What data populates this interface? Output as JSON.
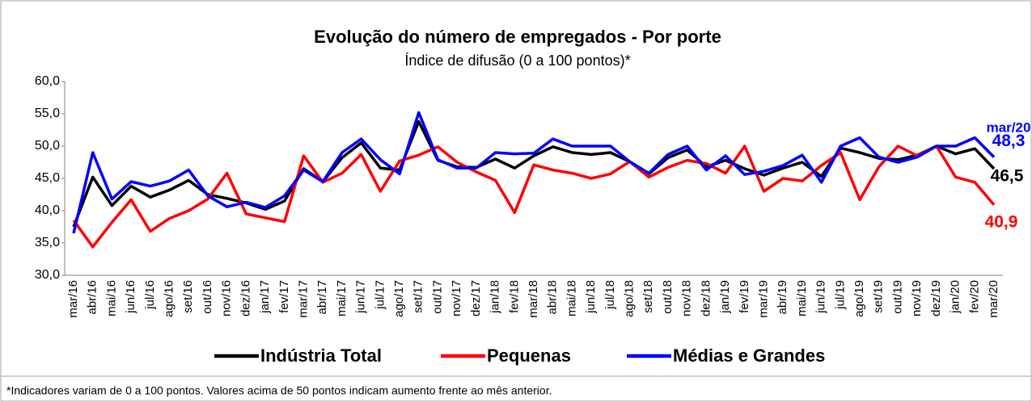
{
  "chart_data": {
    "type": "line",
    "title": "Evolução do número de empregados - Por porte",
    "subtitle": "Índice de difusão (0 a 100 pontos)*",
    "footnote": "*Indicadores variam de 0 a 100 pontos. Valores acima de 50 pontos indicam aumento frente ao mês anterior.",
    "annotations": [
      "mar/20"
    ],
    "categories": [
      "mar/16",
      "abr/16",
      "mai/16",
      "jun/16",
      "jul/16",
      "ago/16",
      "set/16",
      "out/16",
      "nov/16",
      "dez/16",
      "jan/17",
      "fev/17",
      "mar/17",
      "abr/17",
      "mai/17",
      "jun/17",
      "jul/17",
      "ago/17",
      "set/17",
      "out/17",
      "nov/17",
      "dez/17",
      "jan/18",
      "fev/18",
      "mar/18",
      "abr/18",
      "mai/18",
      "jun/18",
      "jul/18",
      "ago/18",
      "set/18",
      "out/18",
      "nov/18",
      "dez/18",
      "jan/19",
      "fev/19",
      "mar/19",
      "abr/19",
      "mai/19",
      "jun/19",
      "jul/19",
      "ago/19",
      "set/19",
      "out/19",
      "nov/19",
      "dez/19",
      "jan/20",
      "fev/20",
      "mar/20"
    ],
    "series": [
      {
        "name": "Indústria Total",
        "color": "#000000",
        "values": [
          37.5,
          45.2,
          40.8,
          43.8,
          42.1,
          43.2,
          44.7,
          42.5,
          41.9,
          41.2,
          40.2,
          41.5,
          46.5,
          44.5,
          48.2,
          50.5,
          46.6,
          46.3,
          53.8,
          47.8,
          46.8,
          46.7,
          48.0,
          46.6,
          48.5,
          49.9,
          49.0,
          48.7,
          49.0,
          47.6,
          45.7,
          48.2,
          49.4,
          46.8,
          47.8,
          46.5,
          45.5,
          46.6,
          47.5,
          45.3,
          49.7,
          49.0,
          48.1,
          47.9,
          48.6,
          50.0,
          48.8,
          49.6,
          46.5
        ],
        "value_labels": [
          null,
          null,
          null,
          null,
          null,
          null,
          null,
          null,
          null,
          null,
          null,
          null,
          null,
          null,
          null,
          null,
          null,
          null,
          null,
          null,
          null,
          null,
          null,
          null,
          null,
          null,
          null,
          null,
          null,
          null,
          null,
          null,
          null,
          null,
          null,
          null,
          null,
          null,
          null,
          null,
          null,
          null,
          null,
          null,
          null,
          null,
          null,
          null,
          "46,5"
        ]
      },
      {
        "name": "Pequenas",
        "color": "#ff0000",
        "values": [
          38.5,
          34.4,
          38.2,
          41.7,
          36.8,
          38.8,
          40.0,
          41.8,
          45.8,
          39.5,
          38.9,
          38.3,
          48.5,
          44.4,
          45.8,
          48.7,
          43.0,
          47.7,
          48.6,
          49.9,
          47.5,
          46.0,
          44.7,
          39.7,
          47.1,
          46.3,
          45.8,
          45.0,
          45.7,
          47.6,
          45.2,
          46.7,
          47.8,
          47.3,
          45.8,
          50.0,
          43.0,
          45.0,
          44.6,
          47.0,
          49.0,
          41.7,
          46.8,
          50.0,
          48.5,
          50.0,
          45.2,
          44.4,
          40.9
        ],
        "value_labels": [
          null,
          null,
          null,
          null,
          null,
          null,
          null,
          null,
          null,
          null,
          null,
          null,
          null,
          null,
          null,
          null,
          null,
          null,
          null,
          null,
          null,
          null,
          null,
          null,
          null,
          null,
          null,
          null,
          null,
          null,
          null,
          null,
          null,
          null,
          null,
          null,
          null,
          null,
          null,
          null,
          null,
          null,
          null,
          null,
          null,
          null,
          null,
          null,
          "40,9"
        ]
      },
      {
        "name": "Médias e Grandes",
        "color": "#0000ff",
        "values": [
          36.5,
          49.0,
          41.8,
          44.5,
          43.8,
          44.6,
          46.3,
          42.3,
          40.6,
          41.3,
          40.5,
          42.3,
          46.3,
          44.5,
          49.0,
          51.1,
          47.9,
          45.7,
          55.2,
          47.9,
          46.6,
          46.6,
          49.0,
          48.8,
          48.9,
          51.1,
          50.0,
          50.0,
          50.0,
          47.6,
          45.8,
          48.7,
          50.0,
          46.3,
          48.5,
          45.6,
          46.1,
          47.0,
          48.6,
          44.4,
          50.0,
          51.3,
          48.3,
          47.5,
          48.3,
          50.0,
          50.0,
          51.3,
          48.3
        ],
        "value_labels": [
          null,
          null,
          null,
          null,
          null,
          null,
          null,
          null,
          null,
          null,
          null,
          null,
          null,
          null,
          null,
          null,
          null,
          null,
          null,
          null,
          null,
          null,
          null,
          null,
          null,
          null,
          null,
          null,
          null,
          null,
          null,
          null,
          null,
          null,
          null,
          null,
          null,
          null,
          null,
          null,
          null,
          null,
          null,
          null,
          null,
          null,
          null,
          null,
          "48,3"
        ]
      }
    ],
    "ylim": [
      30,
      60
    ],
    "yticks": [
      {
        "value": 30,
        "label": "30,0"
      },
      {
        "value": 35,
        "label": "35,0"
      },
      {
        "value": 40,
        "label": "40,0"
      },
      {
        "value": 45,
        "label": "45,0"
      },
      {
        "value": 50,
        "label": "50,0"
      },
      {
        "value": 55,
        "label": "55,0"
      },
      {
        "value": 60,
        "label": "60,0"
      }
    ],
    "grid": false,
    "legend": "bottom"
  }
}
